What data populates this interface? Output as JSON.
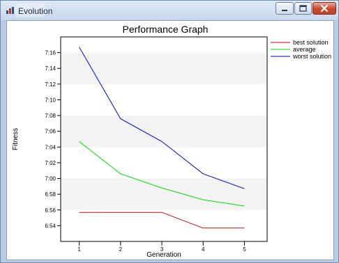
{
  "window": {
    "title": "Evolution",
    "icon": "chart-app-icon",
    "buttons": {
      "minimize": "minimize-icon",
      "maximize": "maximize-icon",
      "close": "close-icon"
    }
  },
  "colors": {
    "best": "#e00000",
    "average": "#00e000",
    "worst": "#0000e0",
    "band": "#f3f3f3"
  },
  "chart_data": {
    "type": "line",
    "title": "Performance Graph",
    "xlabel": "Generation",
    "ylabel": "Fitness",
    "x": [
      1,
      2,
      3,
      4,
      5
    ],
    "x_ticks": [
      "1",
      "2",
      "3",
      "4",
      "5"
    ],
    "y_ticks": [
      "6:54",
      "6:56",
      "6:58",
      "7:00",
      "7:02",
      "7:04",
      "7:06",
      "7:08",
      "7:10",
      "7:12",
      "7:14",
      "7:16"
    ],
    "y_tick_values": [
      414,
      416,
      418,
      420,
      422,
      424,
      426,
      428,
      430,
      432,
      434,
      436
    ],
    "ylim": [
      412,
      438
    ],
    "xlim": [
      0.55,
      5.55
    ],
    "y_unit": "minutes:seconds",
    "grid": "alternating horizontal bands",
    "legend_position": "right, outside plot",
    "series": [
      {
        "name": "best solution",
        "values": [
          415.7,
          415.7,
          415.7,
          413.7,
          413.7
        ]
      },
      {
        "name": "average",
        "values": [
          424.7,
          420.6,
          418.8,
          417.3,
          416.5
        ]
      },
      {
        "name": "worst solution",
        "values": [
          436.7,
          427.6,
          424.7,
          420.6,
          418.7
        ]
      }
    ]
  }
}
